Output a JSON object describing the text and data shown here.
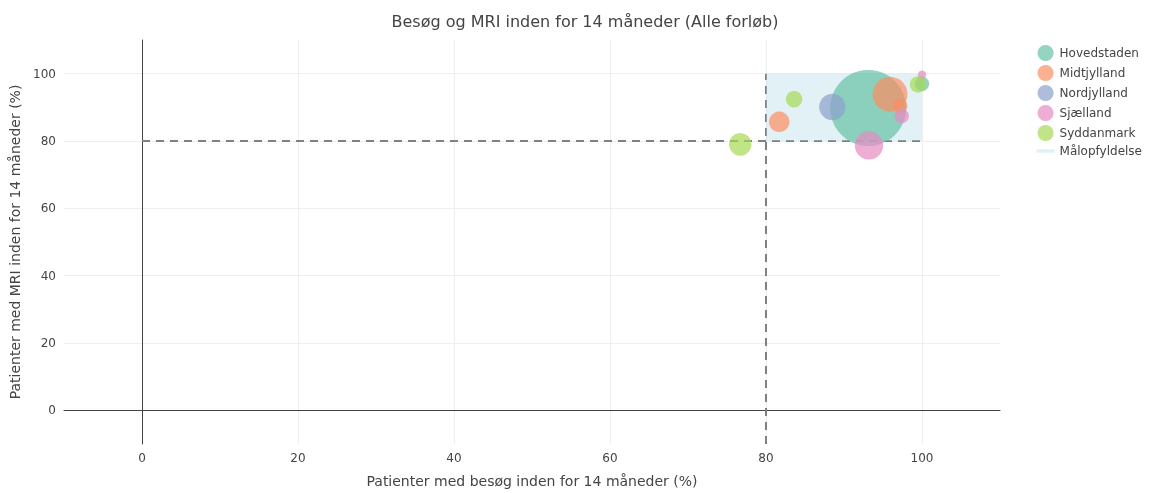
{
  "chart_data": {
    "type": "bubble",
    "title": "Besøg og MRI inden for 14 måneder (Alle forløb)",
    "xlabel": "Patienter med besøg inden for 14 måneder (%)",
    "ylabel": "Patienter med MRI inden for 14 måneder (%)",
    "xlim": [
      -10,
      110
    ],
    "ylim": [
      -10,
      110
    ],
    "xticks": [
      0,
      20,
      40,
      60,
      80,
      100
    ],
    "yticks": [
      0,
      20,
      40,
      60,
      80,
      100
    ],
    "grid": true,
    "legend": "top right",
    "series": [
      {
        "name": "Hovedstaden",
        "color": "#66c2a5",
        "x": [
          93.1,
          100
        ],
        "values": [
          89.8,
          97
        ],
        "sizes": [
          1,
          0.036
        ]
      },
      {
        "name": "Midtjylland",
        "color": "#fc8d62",
        "x": [
          95.9,
          97.2,
          81.7
        ],
        "values": [
          93.9,
          90.4,
          85.7
        ],
        "sizes": [
          0.21,
          0.036,
          0.073
        ]
      },
      {
        "name": "Nordjylland",
        "color": "#8da0cb",
        "x": [
          88.5
        ],
        "values": [
          90.1
        ],
        "sizes": [
          0.12
        ]
      },
      {
        "name": "Sjælland",
        "color": "#e78ac3",
        "x": [
          93.2,
          97.4,
          100
        ],
        "values": [
          78.7,
          87.4,
          99.7
        ],
        "sizes": [
          0.14,
          0.036,
          0.012
        ]
      },
      {
        "name": "Syddanmark",
        "color": "#a6d854",
        "x": [
          76.7,
          83.6,
          99.5
        ],
        "values": [
          79,
          92.4,
          96.8
        ],
        "sizes": [
          0.088,
          0.047,
          0.047
        ]
      },
      {
        "name": "Målopfyldelse",
        "type": "line",
        "color": "#add8e6",
        "x": [
          80,
          100
        ],
        "values": [
          null,
          null
        ],
        "lower": [
          80,
          80
        ],
        "upper": [
          100,
          100
        ]
      },
      {
        "type": "line",
        "color": "#808080",
        "line_style": "dashed",
        "x": [
          0,
          100
        ],
        "values": [
          80,
          80
        ]
      },
      {
        "type": "line",
        "color": "#808080",
        "line_style": "dashed",
        "x": [
          80,
          80
        ],
        "values": [
          -10,
          100
        ]
      }
    ]
  }
}
